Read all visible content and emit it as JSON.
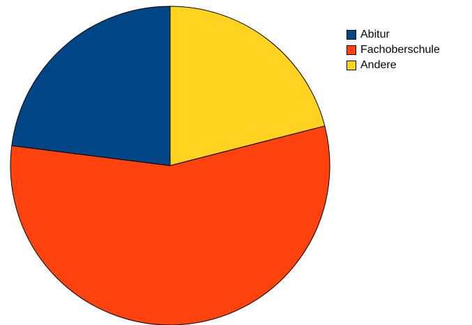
{
  "chart_data": {
    "type": "pie",
    "title": "",
    "legend_position": "right",
    "start_angle": "12 o'clock",
    "direction": "clockwise",
    "slices": [
      {
        "name": "Andere",
        "value": 21,
        "color": "#FFD320"
      },
      {
        "name": "Fachoberschule",
        "value": 56,
        "color": "#FF420E"
      },
      {
        "name": "Abitur",
        "value": 23,
        "color": "#004586"
      }
    ],
    "legend": [
      {
        "label": "Abitur",
        "color": "#004586"
      },
      {
        "label": "Fachoberschule",
        "color": "#FF420E"
      },
      {
        "label": "Andere",
        "color": "#FFD320"
      }
    ]
  }
}
